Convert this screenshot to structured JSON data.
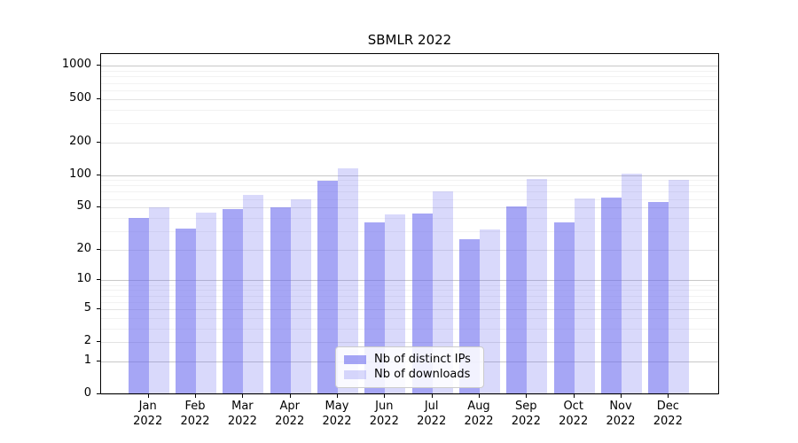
{
  "chart_data": {
    "type": "bar",
    "title": "SBMLR 2022",
    "year_label": "2022",
    "categories": [
      "Jan",
      "Feb",
      "Mar",
      "Apr",
      "May",
      "Jun",
      "Jul",
      "Aug",
      "Sep",
      "Oct",
      "Nov",
      "Dec"
    ],
    "series": [
      {
        "name": "Nb of distinct IPs",
        "values": [
          40,
          32,
          48,
          50,
          88,
          36,
          44,
          25,
          51,
          36,
          62,
          56
        ]
      },
      {
        "name": "Nb of downloads",
        "values": [
          50,
          45,
          66,
          60,
          115,
          43,
          70,
          31,
          92,
          61,
          103,
          91
        ]
      }
    ],
    "xlabel": "",
    "ylabel": "",
    "yscale": "log1p",
    "y_ticks": [
      0,
      1,
      2,
      5,
      10,
      20,
      50,
      100,
      200,
      500,
      1000
    ],
    "y_minor_ticks": [
      3,
      4,
      6,
      7,
      8,
      9,
      30,
      40,
      60,
      70,
      80,
      90,
      300,
      400,
      600,
      700,
      800,
      900
    ],
    "ylim": [
      0,
      1270
    ],
    "grid": true,
    "legend_position": "lower center"
  },
  "colors": {
    "bar_base": "#6666ee",
    "bar_ips": "rgba(102,102,238,0.58)",
    "bar_downloads": "rgba(102,102,238,0.25)",
    "grid_power10": "#c8c8c8",
    "grid_labeled": "#e3e3e3",
    "grid_minor": "#f2f2f2",
    "spine": "#000000",
    "legend_border": "#cccccc"
  }
}
